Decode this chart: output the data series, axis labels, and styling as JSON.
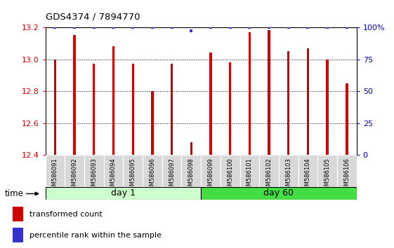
{
  "title": "GDS4374 / 7894770",
  "samples": [
    "GSM586091",
    "GSM586092",
    "GSM586093",
    "GSM586094",
    "GSM586095",
    "GSM586096",
    "GSM586097",
    "GSM586098",
    "GSM586099",
    "GSM586100",
    "GSM586101",
    "GSM586102",
    "GSM586103",
    "GSM586104",
    "GSM586105",
    "GSM586106"
  ],
  "red_values": [
    13.0,
    13.15,
    12.97,
    13.08,
    12.97,
    12.8,
    12.97,
    12.48,
    13.04,
    12.98,
    13.17,
    13.18,
    13.05,
    13.07,
    13.0,
    12.85
  ],
  "blue_values": [
    100,
    100,
    100,
    100,
    100,
    100,
    100,
    97,
    100,
    100,
    100,
    100,
    100,
    100,
    100,
    100
  ],
  "day1_samples": 8,
  "day60_samples": 8,
  "ymin": 12.4,
  "ymax": 13.2,
  "yticks": [
    12.4,
    12.6,
    12.8,
    13.0,
    13.2
  ],
  "right_yticks": [
    0,
    25,
    50,
    75,
    100
  ],
  "right_yticklabels": [
    "0",
    "25",
    "50",
    "75",
    "100%"
  ],
  "bar_color": "#cc0000",
  "blue_color": "#3333cc",
  "day1_color": "#ccffcc",
  "day60_color": "#44dd44",
  "day1_label": "day 1",
  "day60_label": "day 60",
  "legend_red": "transformed count",
  "legend_blue": "percentile rank within the sample",
  "xlabel_time": "time",
  "tick_label_color_left": "#cc0000",
  "tick_label_color_right": "#0000cc",
  "bar_width": 0.12,
  "chart_bg": "#ffffff",
  "fig_bg": "#ffffff"
}
